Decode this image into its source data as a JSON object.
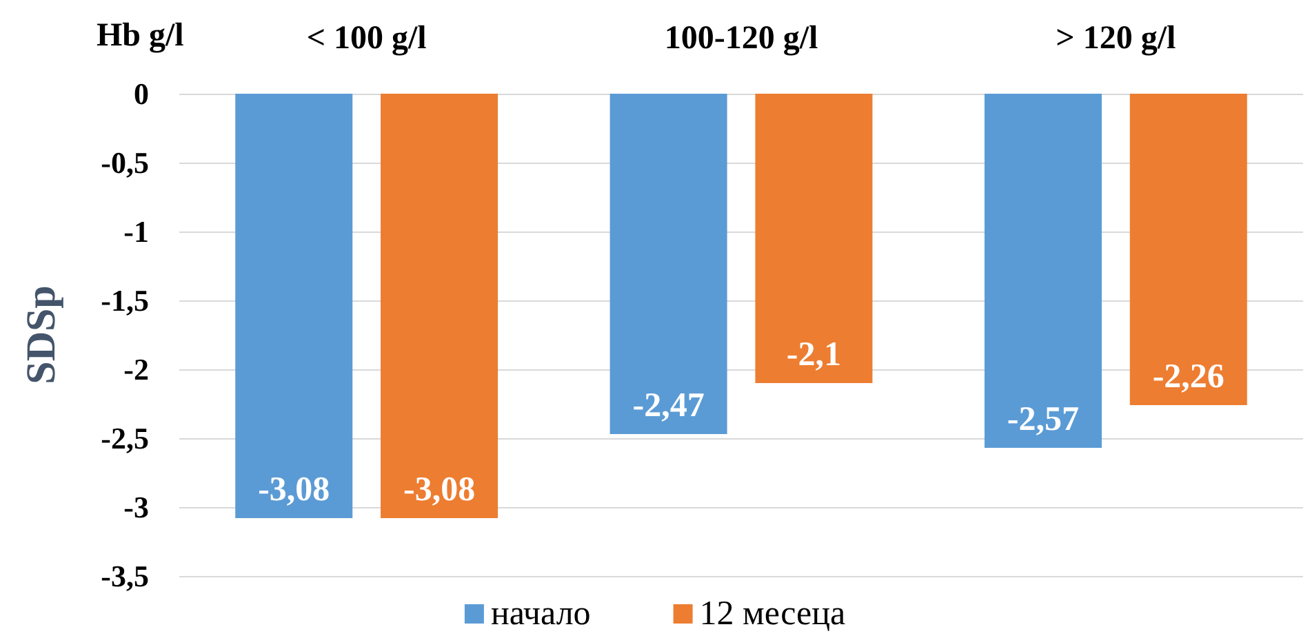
{
  "chart_data": {
    "type": "bar",
    "xlabel": "Hb g/l",
    "ylabel": "SDSp",
    "categories": [
      "< 100 g/l",
      "100-120 g/l",
      "> 120 g/l"
    ],
    "series": [
      {
        "name": "начало",
        "color": "#5b9bd5",
        "values": [
          -3.08,
          -2.47,
          -2.57
        ],
        "value_labels": [
          "-3,08",
          "-2,47",
          "-2,57"
        ]
      },
      {
        "name": "12 месеца",
        "color": "#ed7d31",
        "values": [
          -3.08,
          -2.1,
          -2.26
        ],
        "value_labels": [
          "-3,08",
          "-2,1",
          "-2,26"
        ]
      }
    ],
    "ylim": [
      -3.5,
      0
    ],
    "yticks": [
      0,
      {
        "value": -0.5,
        "label": "-0,5"
      },
      -1,
      {
        "value": -1.5,
        "label": "-1,5"
      },
      -2,
      {
        "value": -2.5,
        "label": "-2,5"
      },
      -3,
      {
        "value": -3.5,
        "label": "-3,5"
      }
    ],
    "grid": "y",
    "legend": "bottom"
  }
}
